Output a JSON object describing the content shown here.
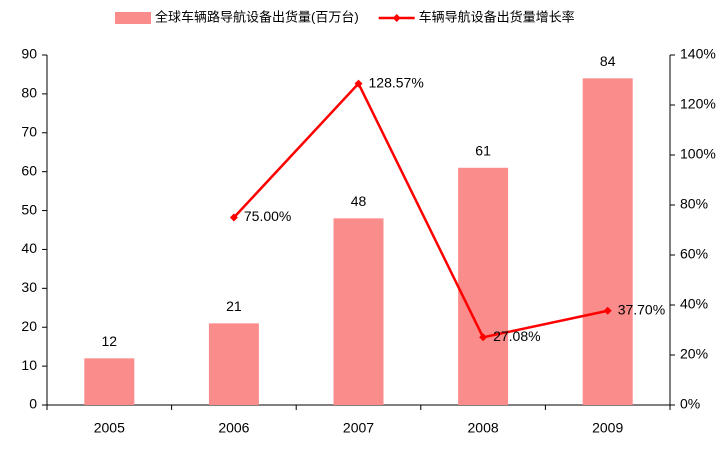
{
  "chart_data": {
    "type": "bar",
    "categories": [
      "2005",
      "2006",
      "2007",
      "2008",
      "2009"
    ],
    "series": [
      {
        "name": "全球车辆路导航设备出货量(百万台)",
        "type": "bar",
        "color": "#fa8c8c",
        "values": [
          12,
          21,
          48,
          61,
          84
        ]
      },
      {
        "name": "车辆导航设备出货量增长率",
        "type": "line",
        "axis": "y2",
        "color": "#ff0000",
        "values": [
          null,
          75.0,
          128.57,
          27.08,
          37.7
        ],
        "value_labels": [
          null,
          "75.00%",
          "128.57%",
          "27.08%",
          "37.70%"
        ]
      }
    ],
    "ylim": [
      0,
      90
    ],
    "yticks": [
      0,
      10,
      20,
      30,
      40,
      50,
      60,
      70,
      80,
      90
    ],
    "y2lim": [
      0,
      140
    ],
    "y2ticks": [
      {
        "value": 0,
        "label": "0%"
      },
      {
        "value": 20,
        "label": "20%"
      },
      {
        "value": 40,
        "label": "40%"
      },
      {
        "value": 60,
        "label": "60%"
      },
      {
        "value": 80,
        "label": "80%"
      },
      {
        "value": 100,
        "label": "100%"
      },
      {
        "value": 120,
        "label": "120%"
      },
      {
        "value": 140,
        "label": "140%"
      }
    ],
    "grid": false
  }
}
